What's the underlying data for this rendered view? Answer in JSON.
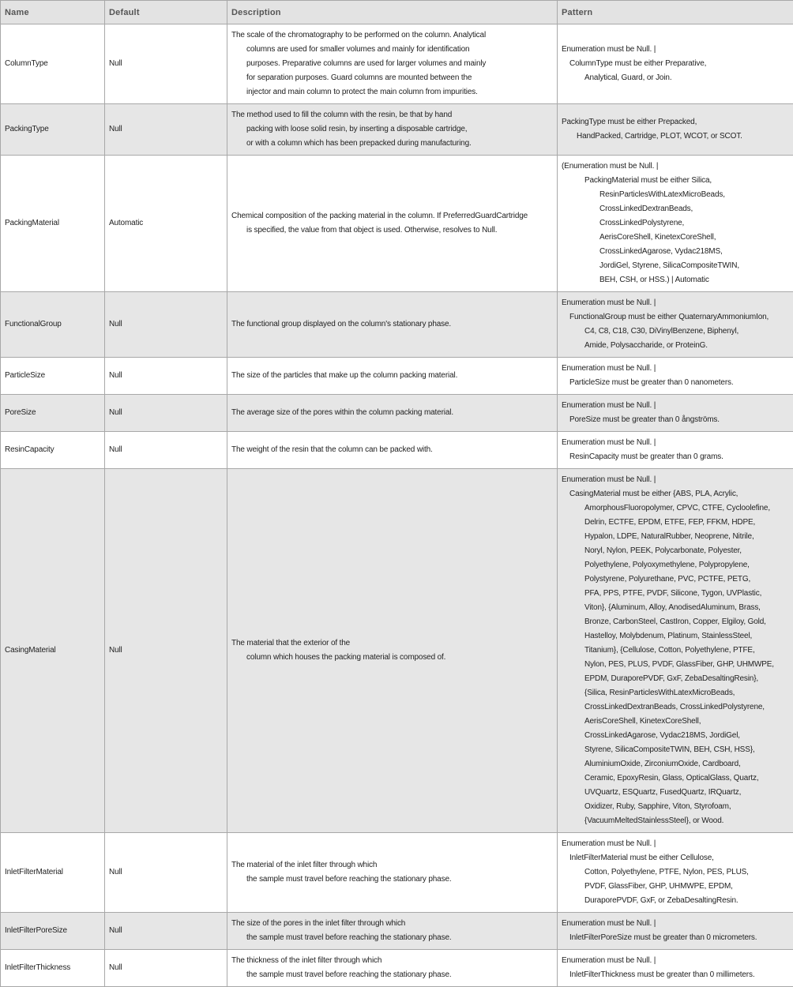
{
  "headers": [
    "Name",
    "Default",
    "Description",
    "Pattern"
  ],
  "rows": [
    {
      "name": "ColumnType",
      "default": "Null",
      "description": [
        "The scale of the chromatography to be performed on the column. Analytical",
        "columns are used for smaller volumes and mainly for identification",
        "purposes. Preparative columns are used for larger volumes and mainly",
        "for separation purposes. Guard columns are mounted between the",
        "injector and main column to protect the main column from impurities."
      ],
      "pattern": [
        "Enumeration must be Null. |",
        "ColumnType must be either Preparative,",
        "Analytical, Guard, or Join."
      ]
    },
    {
      "name": "PackingType",
      "default": "Null",
      "description": [
        "The method used to fill the column with the resin, be that by hand",
        "packing with loose solid resin, by inserting a disposable cartridge,",
        "or with a column which has been prepacked during manufacturing."
      ],
      "pattern": [
        "PackingType must be either Prepacked,",
        "HandPacked, Cartridge, PLOT, WCOT, or SCOT."
      ]
    },
    {
      "name": "PackingMaterial",
      "default": "Automatic",
      "description": [
        "Chemical composition of the packing material in the column.  If PreferredGuardCartridge",
        "is specified, the value from that object is used. Otherwise, resolves to Null."
      ],
      "pattern": [
        "(Enumeration must be Null. |",
        "PackingMaterial must be either Silica,",
        "ResinParticlesWithLatexMicroBeads,",
        "CrossLinkedDextranBeads,",
        "CrossLinkedPolystyrene,",
        "AerisCoreShell, KinetexCoreShell,",
        "CrossLinkedAgarose, Vydac218MS,",
        "JordiGel, Styrene, SilicaCompositeTWIN,",
        "BEH, CSH, or HSS.) | Automatic"
      ]
    },
    {
      "name": "FunctionalGroup",
      "default": "Null",
      "description": [
        "The functional group displayed on the column's stationary phase."
      ],
      "pattern": [
        "Enumeration must be Null. |",
        "FunctionalGroup must be either QuaternaryAmmoniumIon,",
        "C4, C8, C18, C30, DiVinylBenzene, Biphenyl,",
        "Amide, Polysaccharide, or ProteinG."
      ]
    },
    {
      "name": "ParticleSize",
      "default": "Null",
      "description": [
        "The size of the particles that make up the column packing material."
      ],
      "pattern": [
        "Enumeration must be Null. |",
        "ParticleSize must be greater than 0 nanometers."
      ]
    },
    {
      "name": "PoreSize",
      "default": "Null",
      "description": [
        "The average size of the pores within the column packing material."
      ],
      "pattern": [
        "Enumeration must be Null. |",
        "PoreSize must be greater than 0 ångströms."
      ]
    },
    {
      "name": "ResinCapacity",
      "default": "Null",
      "description": [
        "The weight of the resin that the column can be packed with."
      ],
      "pattern": [
        "Enumeration must be Null. |",
        "ResinCapacity must be greater than 0 grams."
      ]
    },
    {
      "name": "CasingMaterial",
      "default": "Null",
      "description": [
        "The material that the exterior of the",
        "column which houses the packing material is composed of."
      ],
      "pattern": [
        "Enumeration must be Null. |",
        "CasingMaterial must be either {ABS, PLA, Acrylic,",
        "AmorphousFluoropolymer, CPVC, CTFE, Cycloolefine,",
        "Delrin, ECTFE, EPDM, ETFE, FEP, FFKM, HDPE,",
        "Hypalon, LDPE, NaturalRubber, Neoprene, Nitrile,",
        "Noryl, Nylon, PEEK, Polycarbonate, Polyester,",
        "Polyethylene, Polyoxymethylene, Polypropylene,",
        "Polystyrene, Polyurethane, PVC, PCTFE, PETG,",
        "PFA, PPS, PTFE, PVDF, Silicone, Tygon, UVPlastic,",
        "Viton}, {Aluminum, Alloy, AnodisedAluminum, Brass,",
        "Bronze, CarbonSteel, CastIron, Copper, Elgiloy, Gold,",
        "Hastelloy, Molybdenum, Platinum, StainlessSteel,",
        "Titanium}, {Cellulose, Cotton, Polyethylene, PTFE,",
        "Nylon, PES, PLUS, PVDF, GlassFiber, GHP, UHMWPE,",
        "EPDM, DuraporePVDF, GxF, ZebaDesaltingResin},",
        "{Silica, ResinParticlesWithLatexMicroBeads,",
        "CrossLinkedDextranBeads, CrossLinkedPolystyrene,",
        "AerisCoreShell, KinetexCoreShell,",
        "CrossLinkedAgarose, Vydac218MS, JordiGel,",
        "Styrene, SilicaCompositeTWIN, BEH, CSH, HSS},",
        "AluminiumOxide, ZirconiumOxide, Cardboard,",
        "Ceramic, EpoxyResin, Glass, OpticalGlass, Quartz,",
        "UVQuartz, ESQuartz, FusedQuartz, IRQuartz,",
        "Oxidizer, Ruby, Sapphire, Viton, Styrofoam,",
        "{VacuumMeltedStainlessSteel}, or Wood."
      ]
    },
    {
      "name": "InletFilterMaterial",
      "default": "Null",
      "description": [
        "The material of the inlet filter through which",
        "the sample must travel before reaching the stationary phase."
      ],
      "pattern": [
        "Enumeration must be Null. |",
        "InletFilterMaterial must be either Cellulose,",
        "Cotton, Polyethylene, PTFE, Nylon, PES, PLUS,",
        "PVDF, GlassFiber, GHP, UHMWPE, EPDM,",
        "DuraporePVDF, GxF, or ZebaDesaltingResin."
      ]
    },
    {
      "name": "InletFilterPoreSize",
      "default": "Null",
      "description": [
        "The size of the pores in the inlet filter through which",
        "the sample must travel before reaching the stationary phase."
      ],
      "pattern": [
        "Enumeration must be Null. |",
        "InletFilterPoreSize must be greater than 0 micrometers."
      ]
    },
    {
      "name": "InletFilterThickness",
      "default": "Null",
      "description": [
        "The thickness of the inlet filter through which",
        "the sample must travel before reaching the stationary phase."
      ],
      "pattern": [
        "Enumeration must be Null. |",
        "InletFilterThickness must be greater than 0 millimeters."
      ]
    }
  ]
}
